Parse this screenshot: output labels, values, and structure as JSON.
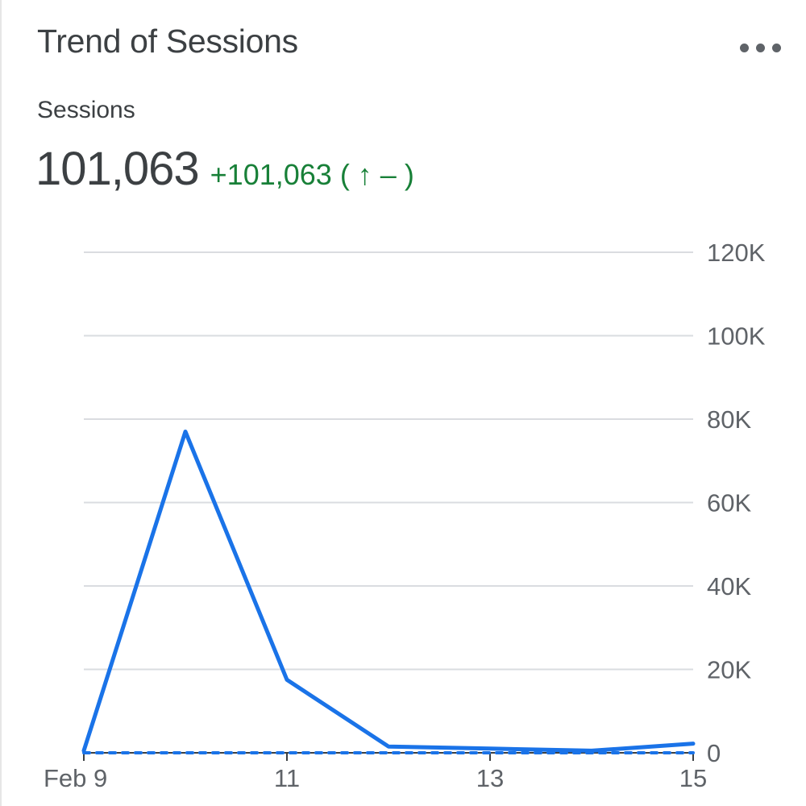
{
  "card": {
    "title": "Trend of Sessions",
    "menu_icon": "more-horiz-icon"
  },
  "metric": {
    "label": "Sessions",
    "value": "101,063",
    "delta": "+101,063 ( ↑ – )",
    "delta_color": "#188038"
  },
  "colors": {
    "series": "#1a73e8",
    "grid": "#dadce0",
    "text": "#3c4043",
    "axis_text": "#5f6368"
  },
  "chart_data": {
    "type": "line",
    "title": "",
    "xlabel": "",
    "ylabel": "",
    "x": [
      "Feb 9",
      "Feb 10",
      "Feb 11",
      "Feb 12",
      "Feb 13",
      "Feb 14",
      "Feb 15"
    ],
    "x_tick_labels": [
      "Feb 9",
      "",
      "11",
      "",
      "13",
      "",
      "15"
    ],
    "y_ticks": [
      0,
      20000,
      40000,
      60000,
      80000,
      100000,
      120000
    ],
    "y_tick_labels": [
      "0",
      "20K",
      "40K",
      "60K",
      "80K",
      "100K",
      "120K"
    ],
    "ylim": [
      0,
      120000
    ],
    "y_axis_position": "right",
    "grid": true,
    "series": [
      {
        "values": [
          500,
          77000,
          17500,
          1500,
          1000,
          500,
          2200
        ],
        "style": "solid",
        "color": "#1a73e8"
      },
      {
        "values": [
          0,
          0,
          0,
          0,
          0,
          0,
          0
        ],
        "style": "dashed",
        "color": "#1a73e8"
      }
    ]
  }
}
